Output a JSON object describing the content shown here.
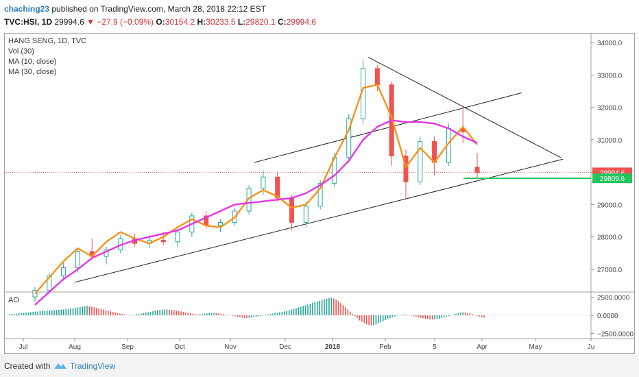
{
  "header": {
    "author": "chaching23",
    "published": "published on TradingView.com, March 28, 2018 22:12 EST",
    "symbol": "TVC:HSI, 1D",
    "last": "29994.6",
    "change": "−27.9 (−0.09%)",
    "o_label": "O:",
    "o_value": "30154.2",
    "h_label": "H:",
    "h_value": "30233.5",
    "l_label": "L:",
    "l_value": "29820.1",
    "c_label": "C:",
    "c_value": "29994.6",
    "change_color": "#d1363a"
  },
  "footer": {
    "created": "Created with",
    "brand": "TradingView",
    "brand_color": "#2b7bbd"
  },
  "chart_data": [
    {
      "type": "candlestick",
      "legend": [
        "HANG SENG, 1D, TVC",
        "Vol (30)",
        "MA (10, close)",
        "MA (30, close)"
      ],
      "ylim": [
        26300,
        34300
      ],
      "y_ticks": [
        "34000.0",
        "33000.0",
        "32000.0",
        "31000.0",
        "30000.0",
        "29000.0",
        "28000.0",
        "27000.0"
      ],
      "x_ticks": [
        "Jul",
        "Aug",
        "Sep",
        "Oct",
        "Nov",
        "Dec",
        "2018",
        "Feb",
        "5",
        "Apr",
        "May",
        "Ju"
      ],
      "price_labels": [
        {
          "text": "29994.6",
          "value": 29994.6,
          "color": "#ef5350"
        },
        {
          "text": "29809.6",
          "value": 29809.6,
          "color": "#22c55e"
        }
      ],
      "trendlines": [
        {
          "name": "lower-support",
          "points": [
            [
              "Aug",
              26600
            ],
            [
              "Apr 25",
              30400
            ]
          ]
        },
        {
          "name": "upper-channel",
          "points": [
            [
              "Oct 20",
              30300
            ],
            [
              "Apr 20",
              32450
            ]
          ]
        },
        {
          "name": "descending-resistance",
          "points": [
            [
              "Jan 26",
              33550
            ],
            [
              "May 10",
              30450
            ]
          ]
        }
      ],
      "horizontal_line": {
        "value": 29809.6,
        "color": "#22c55e"
      },
      "series": [
        {
          "name": "MA (10, close)",
          "color": "#f7931a",
          "points": [
            [
              0.5,
              26250
            ],
            [
              1.5,
              26750
            ],
            [
              2.5,
              27250
            ],
            [
              3.5,
              27650
            ],
            [
              4.5,
              27400
            ],
            [
              5.5,
              27850
            ],
            [
              6.5,
              28150
            ],
            [
              7.5,
              27950
            ],
            [
              8.5,
              27800
            ],
            [
              9.5,
              28000
            ],
            [
              10.5,
              28300
            ],
            [
              11.5,
              28550
            ],
            [
              12.5,
              28350
            ],
            [
              13.5,
              28300
            ],
            [
              14.5,
              28600
            ],
            [
              15.5,
              29200
            ],
            [
              16.5,
              29450
            ],
            [
              17.5,
              29250
            ],
            [
              18.5,
              28900
            ],
            [
              19.5,
              29000
            ],
            [
              20.5,
              29500
            ],
            [
              21.5,
              30450
            ],
            [
              22.5,
              31300
            ],
            [
              23.5,
              32600
            ],
            [
              24.5,
              32700
            ],
            [
              25.5,
              31700
            ],
            [
              26.5,
              30150
            ],
            [
              27.5,
              30750
            ],
            [
              28.5,
              30300
            ],
            [
              29.5,
              30900
            ],
            [
              30.5,
              31400
            ],
            [
              31.5,
              30850
            ]
          ]
        },
        {
          "name": "MA (30, close)",
          "color": "#e535e5",
          "points": [
            [
              0.5,
              25900
            ],
            [
              1.5,
              26300
            ],
            [
              2.5,
              26700
            ],
            [
              3.5,
              27000
            ],
            [
              4.5,
              27350
            ],
            [
              5.5,
              27550
            ],
            [
              6.5,
              27750
            ],
            [
              7.5,
              27900
            ],
            [
              8.5,
              28000
            ],
            [
              9.5,
              28100
            ],
            [
              10.5,
              28200
            ],
            [
              11.5,
              28400
            ],
            [
              12.5,
              28600
            ],
            [
              13.5,
              28800
            ],
            [
              14.5,
              29000
            ],
            [
              15.5,
              29050
            ],
            [
              16.5,
              29100
            ],
            [
              17.5,
              29150
            ],
            [
              18.5,
              29200
            ],
            [
              19.5,
              29350
            ],
            [
              20.5,
              29600
            ],
            [
              21.5,
              29900
            ],
            [
              22.5,
              30350
            ],
            [
              23.5,
              31000
            ],
            [
              24.5,
              31400
            ],
            [
              25.5,
              31600
            ],
            [
              26.5,
              31550
            ],
            [
              27.5,
              31550
            ],
            [
              28.5,
              31500
            ],
            [
              29.5,
              31350
            ],
            [
              30.5,
              31100
            ],
            [
              31.5,
              30900
            ]
          ]
        }
      ],
      "candles": [
        {
          "o": 26150,
          "h": 26450,
          "l": 26000,
          "c": 26350
        },
        {
          "o": 26350,
          "h": 26900,
          "l": 26250,
          "c": 26800
        },
        {
          "o": 26800,
          "h": 27200,
          "l": 26650,
          "c": 27050
        },
        {
          "o": 27050,
          "h": 27650,
          "l": 26900,
          "c": 27550
        },
        {
          "o": 27550,
          "h": 27950,
          "l": 27300,
          "c": 27400
        },
        {
          "o": 27400,
          "h": 27700,
          "l": 27150,
          "c": 27600
        },
        {
          "o": 27600,
          "h": 28050,
          "l": 27500,
          "c": 27950
        },
        {
          "o": 27950,
          "h": 28100,
          "l": 27700,
          "c": 27800
        },
        {
          "o": 27800,
          "h": 28050,
          "l": 27650,
          "c": 27900
        },
        {
          "o": 27900,
          "h": 28150,
          "l": 27750,
          "c": 27850
        },
        {
          "o": 27850,
          "h": 28250,
          "l": 27700,
          "c": 28150
        },
        {
          "o": 28150,
          "h": 28750,
          "l": 28000,
          "c": 28650
        },
        {
          "o": 28650,
          "h": 28800,
          "l": 28250,
          "c": 28350
        },
        {
          "o": 28350,
          "h": 28550,
          "l": 28150,
          "c": 28450
        },
        {
          "o": 28450,
          "h": 28900,
          "l": 28350,
          "c": 28800
        },
        {
          "o": 28800,
          "h": 29600,
          "l": 28700,
          "c": 29500
        },
        {
          "o": 29500,
          "h": 30050,
          "l": 29300,
          "c": 29850
        },
        {
          "o": 29850,
          "h": 30000,
          "l": 29100,
          "c": 29200
        },
        {
          "o": 29200,
          "h": 29300,
          "l": 28200,
          "c": 28450
        },
        {
          "o": 28450,
          "h": 29100,
          "l": 28300,
          "c": 28950
        },
        {
          "o": 28950,
          "h": 29750,
          "l": 28850,
          "c": 29650
        },
        {
          "o": 29650,
          "h": 30600,
          "l": 29550,
          "c": 30450
        },
        {
          "o": 30450,
          "h": 31800,
          "l": 30300,
          "c": 31650
        },
        {
          "o": 31650,
          "h": 33450,
          "l": 31500,
          "c": 33200
        },
        {
          "o": 33200,
          "h": 33300,
          "l": 32500,
          "c": 32700
        },
        {
          "o": 32700,
          "h": 32800,
          "l": 30200,
          "c": 30500
        },
        {
          "o": 30500,
          "h": 30700,
          "l": 29150,
          "c": 29700
        },
        {
          "o": 29700,
          "h": 31100,
          "l": 29600,
          "c": 30950
        },
        {
          "o": 30950,
          "h": 31100,
          "l": 29900,
          "c": 30300
        },
        {
          "o": 30300,
          "h": 31500,
          "l": 30200,
          "c": 31350
        },
        {
          "o": 31350,
          "h": 32000,
          "l": 30900,
          "c": 31250
        },
        {
          "o": 30150,
          "h": 30600,
          "l": 29820,
          "c": 29995
        }
      ]
    },
    {
      "type": "bar",
      "legend": [
        "AO"
      ],
      "ylim": [
        -3200,
        3200
      ],
      "y_ticks": [
        "2500.0000",
        "0.0000",
        "−2500.0000"
      ],
      "colors": {
        "up": "#26a69a",
        "down": "#ef5350"
      },
      "values": [
        150,
        180,
        200,
        220,
        260,
        300,
        330,
        360,
        400,
        440,
        470,
        500,
        520,
        560,
        600,
        640,
        660,
        680,
        700,
        720,
        740,
        760,
        790,
        820,
        860,
        900,
        940,
        980,
        1020,
        1080,
        1150,
        1200,
        1260,
        1300,
        1240,
        1180,
        1100,
        1020,
        940,
        860,
        780,
        700,
        620,
        540,
        460,
        380,
        300,
        240,
        180,
        120,
        80,
        40,
        60,
        100,
        140,
        180,
        240,
        300,
        360,
        420,
        480,
        560,
        640,
        700,
        740,
        780,
        800,
        820,
        780,
        740,
        700,
        640,
        580,
        520,
        460,
        400,
        340,
        280,
        220,
        160,
        120,
        140,
        180,
        220,
        260,
        300,
        320,
        340,
        300,
        260,
        220,
        160,
        100,
        40,
        -20,
        -80,
        -140,
        -200,
        -260,
        -320,
        -360,
        -380,
        -340,
        -300,
        -240,
        -180,
        -120,
        -60,
        0,
        60,
        120,
        180,
        240,
        300,
        360,
        420,
        480,
        540,
        620,
        700,
        800,
        900,
        1000,
        1100,
        1200,
        1300,
        1400,
        1500,
        1600,
        1700,
        1800,
        1900,
        2000,
        2100,
        2200,
        2300,
        2350,
        2400,
        2300,
        2150,
        1950,
        1700,
        1400,
        1100,
        800,
        500,
        200,
        -100,
        -400,
        -700,
        -900,
        -1100,
        -1250,
        -1350,
        -1400,
        -1350,
        -1250,
        -1100,
        -950,
        -800,
        -650,
        -500,
        -380,
        -260,
        -150,
        -60,
        20,
        80,
        120,
        100,
        40,
        -40,
        -120,
        -200,
        -280,
        -360,
        -420,
        -480,
        -520,
        -560,
        -580,
        -560,
        -520,
        -460,
        -380,
        -300,
        -200,
        -100,
        0,
        100,
        200,
        300,
        380,
        420,
        400,
        340,
        260,
        160,
        40,
        -80,
        -180,
        -260,
        -320
      ]
    }
  ]
}
